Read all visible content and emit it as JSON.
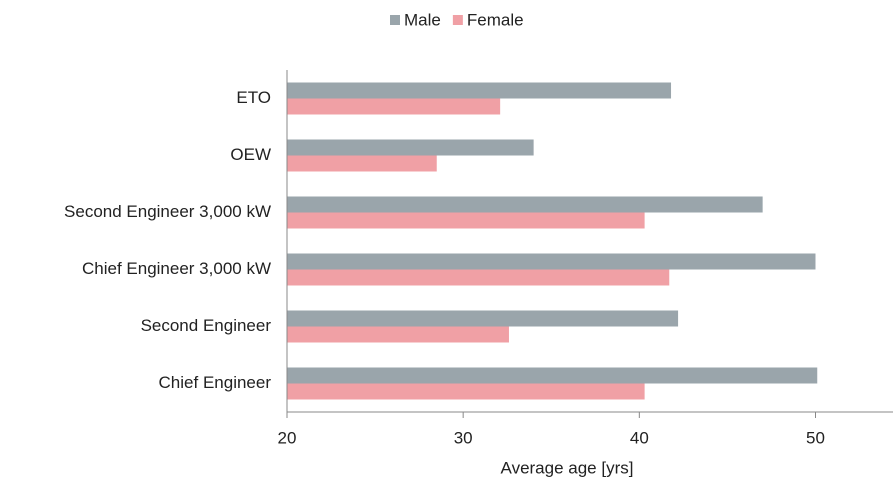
{
  "chart_data": {
    "type": "barh",
    "categories": [
      "ETO",
      "OEW",
      "Second Engineer 3,000 kW",
      "Chief Engineer 3,000 kW",
      "Second Engineer",
      "Chief Engineer"
    ],
    "series": [
      {
        "name": "Male",
        "color": "#9aa5ab",
        "values": [
          41.8,
          34.0,
          47.0,
          50.0,
          42.2,
          50.1
        ]
      },
      {
        "name": "Female",
        "color": "#f0a0a5",
        "values": [
          32.1,
          28.5,
          40.3,
          41.7,
          32.6,
          40.3
        ]
      }
    ],
    "xlabel": "Average age [yrs]",
    "xlim": [
      20,
      54.4
    ],
    "xticks": [
      20,
      30,
      40,
      50
    ],
    "legend": "top"
  }
}
